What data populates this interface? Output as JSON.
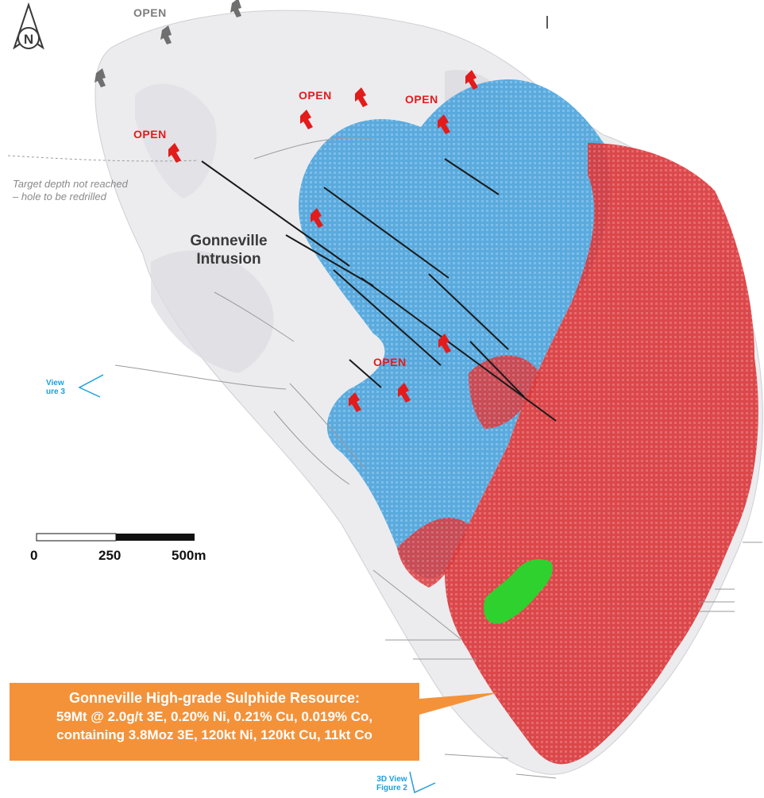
{
  "north_arrow": {
    "letter": "N"
  },
  "open_labels": [
    {
      "id": "grey-top",
      "text": "OPEN",
      "color": "#7d7d7d"
    },
    {
      "id": "red-upper-mid",
      "text": "OPEN",
      "color": "#e31b1b"
    },
    {
      "id": "red-upper-right",
      "text": "OPEN",
      "color": "#e31b1b"
    },
    {
      "id": "red-left",
      "text": "OPEN",
      "color": "#e31b1b"
    },
    {
      "id": "red-lower",
      "text": "OPEN",
      "color": "#e31b1b"
    }
  ],
  "target_note": {
    "line1": "Target depth not reached",
    "line2": "– hole to be redrilled"
  },
  "intrusion_label": {
    "line1": "Gonneville",
    "line2": "Intrusion"
  },
  "scale_bar": {
    "labels": [
      "0",
      "250",
      "500m"
    ]
  },
  "view_markers": {
    "left": {
      "line1": "View",
      "line2": "ure 3"
    },
    "bottom": {
      "line1": "3D View",
      "line2": "Figure 2"
    }
  },
  "callout": {
    "title": "Gonneville High-grade Sulphide Resource:",
    "line2": "59Mt @ 2.0g/t 3E, 0.20% Ni, 0.21% Cu, 0.019% Co,",
    "line3": "containing 3.8Moz 3E, 120kt Ni, 120kt Cu, 11kt Co"
  },
  "colors": {
    "intrusion_shell": "#e9e9ec",
    "blue_zone": "#4aa3dc",
    "red_zone": "#d9393c",
    "green_resource": "#2ed12e",
    "drillhole": "#1a1a1a",
    "open_arrow_red": "#e31b1b",
    "open_arrow_grey": "#6f6f6f",
    "callout_bg": "#f4923a",
    "view_marker": "#1ba0dc"
  }
}
